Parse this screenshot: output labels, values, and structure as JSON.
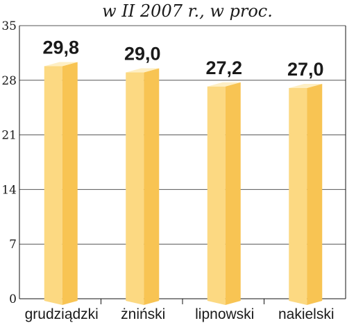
{
  "chart_data": {
    "type": "bar",
    "subtitle": "w II 2007 r., w proc.",
    "categories": [
      "grudziądzki",
      "żniński",
      "lipnowski",
      "nakielski"
    ],
    "values": [
      29.8,
      29.0,
      27.2,
      27.0
    ],
    "value_labels": [
      "29,8",
      "29,0",
      "27,2",
      "27,0"
    ],
    "yticks": [
      0,
      7,
      14,
      21,
      28,
      35
    ],
    "ylim": [
      0,
      35
    ],
    "grid": true,
    "colors": {
      "bar_front": "#FCD982",
      "bar_side": "#F8C453",
      "bar_top": "#FEEFC4",
      "axis": "#111111"
    }
  }
}
